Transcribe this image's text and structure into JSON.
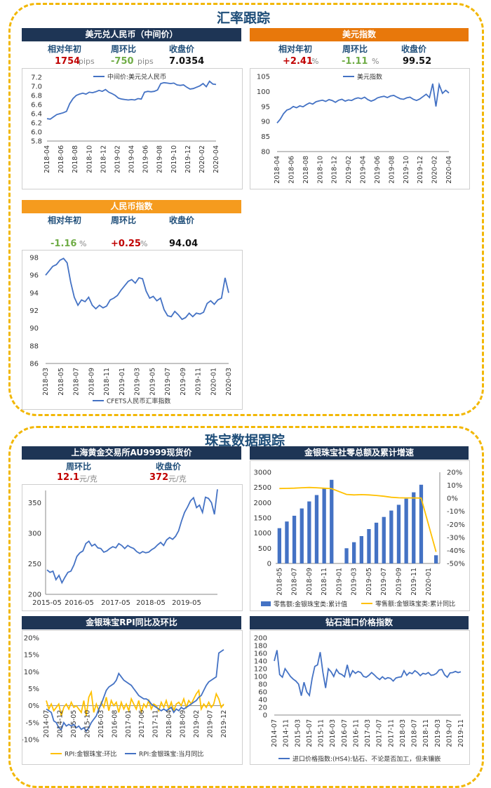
{
  "sections": {
    "fx_title": "汇率跟踪",
    "jewelry_title": "珠宝数据跟踪"
  },
  "usdcny": {
    "header": "美元兑人民币（中间价）",
    "labels": [
      "相对年初",
      "周环比",
      "收盘价"
    ],
    "ytd": "1754",
    "ytd_unit": "pips",
    "wow": "-750",
    "wow_unit": "pips",
    "close": "7.0354"
  },
  "dxy": {
    "header": "美元指数",
    "labels": [
      "相对年初",
      "周环比",
      "收盘价"
    ],
    "ytd": "+2.41",
    "ytd_unit": "%",
    "wow": "-1.11",
    "wow_unit": "%",
    "close": "99.52"
  },
  "cfets": {
    "header": "人民币指数",
    "labels": [
      "相对年初",
      "周环比",
      "收盘价"
    ],
    "ytd": "-1.16",
    "ytd_unit": "%",
    "wow": "+0.25",
    "wow_unit": "%",
    "close": "94.04"
  },
  "gold": {
    "header": "上海黄金交易所AU9999现货价",
    "labels": [
      "周环比",
      "收盘价"
    ],
    "wow": "12.1",
    "wow_unit": "元/克",
    "close": "372",
    "close_unit": "元/克"
  },
  "retail": {
    "header": "金银珠宝社零总额及累计增速"
  },
  "rpi": {
    "header": "金银珠宝RPI同比及环比"
  },
  "diamond": {
    "header": "钻石进口价格指数"
  },
  "colors": {
    "line": "#4472c4",
    "bar": "#4472c4",
    "yellow": "#ffc000",
    "frame": "#f2b705"
  },
  "chart_data": [
    {
      "id": "usdcny",
      "type": "line",
      "legend": "中间价:美元兑人民币",
      "ylim": [
        5.8,
        7.2
      ],
      "yticks": [
        "5.8",
        "6.0",
        "6.2",
        "6.4",
        "6.6",
        "6.8",
        "7.0",
        "7.2"
      ],
      "xticks": [
        "2018-04",
        "2018-06",
        "2018-08",
        "2018-10",
        "2018-12",
        "2019-02",
        "2019-04",
        "2019-06",
        "2019-08",
        "2019-10",
        "2019-12",
        "2020-02",
        "2020-04"
      ],
      "series": [
        {
          "name": "中间价:美元兑人民币",
          "values": [
            6.29,
            6.28,
            6.33,
            6.38,
            6.4,
            6.42,
            6.45,
            6.62,
            6.73,
            6.8,
            6.83,
            6.85,
            6.83,
            6.87,
            6.86,
            6.88,
            6.91,
            6.89,
            6.93,
            6.87,
            6.84,
            6.8,
            6.74,
            6.72,
            6.71,
            6.7,
            6.71,
            6.7,
            6.73,
            6.72,
            6.87,
            6.89,
            6.88,
            6.89,
            6.92,
            7.06,
            7.08,
            7.07,
            7.06,
            7.07,
            7.03,
            7.02,
            7.03,
            6.98,
            6.94,
            6.95,
            6.98,
            7.01,
            7.06,
            6.99,
            7.11,
            7.05,
            7.04
          ]
        }
      ]
    },
    {
      "id": "dxy",
      "type": "line",
      "legend": "美元指数",
      "ylim": [
        80,
        105
      ],
      "yticks": [
        "80",
        "85",
        "90",
        "95",
        "100",
        "105"
      ],
      "xticks": [
        "2018-04",
        "2018-06",
        "2018-08",
        "2018-10",
        "2018-12",
        "2019-02",
        "2019-04",
        "2019-06",
        "2019-08",
        "2019-10",
        "2019-12",
        "2020-02",
        "2020-04"
      ],
      "series": [
        {
          "name": "美元指数",
          "values": [
            89.5,
            90.8,
            92.6,
            93.8,
            94.2,
            95.0,
            94.6,
            95.2,
            94.9,
            95.6,
            96.2,
            95.8,
            96.6,
            96.9,
            97.1,
            96.7,
            97.3,
            97.0,
            96.4,
            97.1,
            97.4,
            96.8,
            97.2,
            97.0,
            97.6,
            97.9,
            97.6,
            98.1,
            97.3,
            96.8,
            97.2,
            97.9,
            98.2,
            98.4,
            98.0,
            98.5,
            98.7,
            98.1,
            97.6,
            97.4,
            97.9,
            98.1,
            97.4,
            97.0,
            97.5,
            98.3,
            99.1,
            98.0,
            102.6,
            95.0,
            102.3,
            99.4,
            100.4,
            99.5
          ]
        }
      ]
    },
    {
      "id": "cfets",
      "type": "line",
      "legend": "CFETS人民币汇率指数",
      "ylim": [
        86,
        98
      ],
      "yticks": [
        "86",
        "88",
        "90",
        "92",
        "94",
        "96",
        "98"
      ],
      "xticks": [
        "2018-03",
        "2018-05",
        "2018-07",
        "2018-09",
        "2018-11",
        "2019-01",
        "2019-03",
        "2019-05",
        "2019-07",
        "2019-09",
        "2019-11",
        "2020-01",
        "2020-03"
      ],
      "series": [
        {
          "name": "CFETS人民币汇率指数",
          "values": [
            96.0,
            96.5,
            97.0,
            97.2,
            97.7,
            97.9,
            97.4,
            95.2,
            93.5,
            92.6,
            93.2,
            93.0,
            93.5,
            92.6,
            92.2,
            92.6,
            92.3,
            92.5,
            93.2,
            93.4,
            93.7,
            94.3,
            94.8,
            95.3,
            95.5,
            95.1,
            95.7,
            95.6,
            94.2,
            93.4,
            93.6,
            93.1,
            93.4,
            92.1,
            91.4,
            91.3,
            91.9,
            91.5,
            91.0,
            91.2,
            91.7,
            91.3,
            91.7,
            91.6,
            91.8,
            92.8,
            93.1,
            92.7,
            93.2,
            93.4,
            95.7,
            94.0
          ]
        }
      ]
    },
    {
      "id": "gold",
      "type": "line",
      "ylim": [
        200,
        370
      ],
      "yticks": [
        "200",
        "250",
        "300",
        "350"
      ],
      "xticks": [
        "2015-05",
        "2016-05",
        "2017-05",
        "2018-05",
        "2019-05"
      ],
      "series": [
        {
          "name": "AU9999",
          "values": [
            240,
            236,
            238,
            224,
            231,
            219,
            228,
            236,
            238,
            248,
            262,
            268,
            271,
            283,
            287,
            279,
            282,
            276,
            275,
            269,
            271,
            275,
            278,
            276,
            283,
            280,
            275,
            280,
            277,
            275,
            270,
            267,
            270,
            268,
            269,
            273,
            276,
            281,
            285,
            280,
            289,
            293,
            290,
            295,
            304,
            320,
            334,
            343,
            353,
            358,
            342,
            346,
            334,
            359,
            357,
            350,
            331,
            372
          ]
        }
      ]
    },
    {
      "id": "retail",
      "type": "bar+line",
      "ylim_left": [
        0,
        3000
      ],
      "ylim_right": [
        -50,
        20
      ],
      "yticks_left": [
        "0",
        "500",
        "1000",
        "1500",
        "2000",
        "2500",
        "3000"
      ],
      "yticks_right": [
        "-50%",
        "-40%",
        "-30%",
        "-20%",
        "-10%",
        "0%",
        "10%",
        "20%"
      ],
      "xticks": [
        "2018-05",
        "2018-07",
        "2018-09",
        "2018-11",
        "2019-01",
        "2019-03",
        "2019-05",
        "2019-07",
        "2019-09",
        "2019-11",
        "2020-01"
      ],
      "legend": [
        "零售额:金银珠宝类:累计值",
        "零售额:金银珠宝类:累计同比"
      ],
      "bars": [
        1160,
        1380,
        1570,
        1810,
        2040,
        2250,
        2460,
        2750,
        null,
        500,
        700,
        900,
        1130,
        1340,
        1530,
        1740,
        1930,
        2130,
        2340,
        2590,
        null,
        270
      ],
      "line": [
        7.5,
        7.6,
        7.8,
        8.1,
        8.3,
        8.1,
        7.7,
        7.4,
        null,
        3.0,
        2.6,
        2.8,
        2.6,
        2.2,
        1.6,
        0.8,
        0.4,
        0.3,
        0.3,
        0.2,
        null,
        -41.1
      ]
    },
    {
      "id": "rpi",
      "type": "line",
      "ylim": [
        -10,
        20
      ],
      "yticks": [
        "-10%",
        "-5%",
        "0%",
        "5%",
        "10%",
        "15%",
        "20%"
      ],
      "xticks": [
        "2014-07",
        "2014-12",
        "2015-05",
        "2015-10",
        "2016-03",
        "2016-08",
        "2017-01",
        "2017-06",
        "2017-11",
        "2018-04",
        "2018-09",
        "2019-02",
        "2019-07",
        "2019-12"
      ],
      "legend": [
        "RPI:金银珠宝:环比",
        "RPI:金银珠宝:当月同比"
      ],
      "series": [
        {
          "name": "RPI:金银珠宝:环比",
          "values": [
            1.5,
            -1.0,
            0.5,
            -1.5,
            -0.5,
            0.5,
            -3.0,
            -0.5,
            0.5,
            -1.0,
            1.0,
            -0.5,
            0.0,
            -1.0,
            -2.0,
            1.5,
            -3.0,
            2.5,
            4.0,
            -2.0,
            0.5,
            -1.5,
            1.0,
            -0.5,
            2.5,
            -1.5,
            1.5,
            0.0,
            1.0,
            -2.0,
            1.0,
            -1.0,
            0.5,
            -1.5,
            2.0,
            0.5,
            -1.0,
            1.5,
            -2.0,
            0.5,
            -0.5,
            1.5,
            -1.0,
            0.5,
            0.0,
            -1.5,
            1.0,
            -0.5,
            1.5,
            -1.0,
            1.0,
            -1.5,
            0.5,
            1.0,
            0.0,
            2.0,
            -0.5,
            1.5,
            0.5,
            2.0,
            3.5,
            4.5,
            -1.0,
            0.5,
            -0.5,
            1.0,
            -0.5,
            0.5,
            3.5,
            2.0,
            -0.5,
            0.5
          ]
        },
        {
          "name": "RPI:金银珠宝:当月同比",
          "values": [
            -1.0,
            -1.5,
            -2.0,
            -4.5,
            -5.0,
            -6.5,
            -7.0,
            -5.0,
            -6.0,
            -5.5,
            -6.0,
            -5.5,
            -6.5,
            -6.0,
            -7.0,
            -6.5,
            -7.5,
            -6.5,
            -5.0,
            -4.0,
            -3.0,
            -1.0,
            0.5,
            2.5,
            4.5,
            5.5,
            6.0,
            6.5,
            7.5,
            9.5,
            8.5,
            7.5,
            7.0,
            6.5,
            6.0,
            5.0,
            4.0,
            3.0,
            2.5,
            2.0,
            2.0,
            1.5,
            0.5,
            0.0,
            -0.5,
            -1.0,
            -1.5,
            -1.0,
            -1.5,
            -1.0,
            -0.5,
            -2.0,
            -1.0,
            -1.5,
            -0.5,
            -1.0,
            -0.5,
            0.0,
            0.5,
            1.0,
            1.5,
            2.5,
            3.0,
            4.5,
            6.0,
            7.0,
            7.5,
            8.0,
            8.5,
            15.5,
            16.0,
            16.5
          ]
        }
      ]
    },
    {
      "id": "diamond",
      "type": "line",
      "ylim": [
        0,
        200
      ],
      "yticks": [
        "0",
        "20",
        "40",
        "60",
        "80",
        "100",
        "120",
        "140",
        "160",
        "180",
        "200"
      ],
      "xticks": [
        "2014-07",
        "2014-11",
        "2015-03",
        "2015-07",
        "2015-11",
        "2016-03",
        "2016-07",
        "2016-11",
        "2017-03",
        "2017-07",
        "2017-11",
        "2018-03",
        "2018-07",
        "2018-11",
        "2019-03",
        "2019-07",
        "2019-11"
      ],
      "legend": "进口价格指数:(HS4):钻石、不论是否加工，但未镶嵌",
      "series": [
        {
          "name": "进口价格指数:(HS4):钻石、不论是否加工，但未镶嵌",
          "values": [
            140,
            168,
            105,
            98,
            120,
            110,
            100,
            93,
            88,
            80,
            50,
            85,
            60,
            51,
            95,
            126,
            130,
            163,
            110,
            70,
            120,
            112,
            100,
            118,
            108,
            105,
            99,
            130,
            100,
            115,
            108,
            113,
            110,
            100,
            98,
            103,
            110,
            104,
            97,
            92,
            99,
            93,
            97,
            95,
            88,
            96,
            98,
            99,
            115,
            103,
            110,
            107,
            115,
            110,
            102,
            108,
            106,
            110,
            103,
            104,
            108,
            117,
            118,
            104,
            98,
            109,
            110,
            113,
            110,
            112
          ]
        }
      ]
    }
  ]
}
